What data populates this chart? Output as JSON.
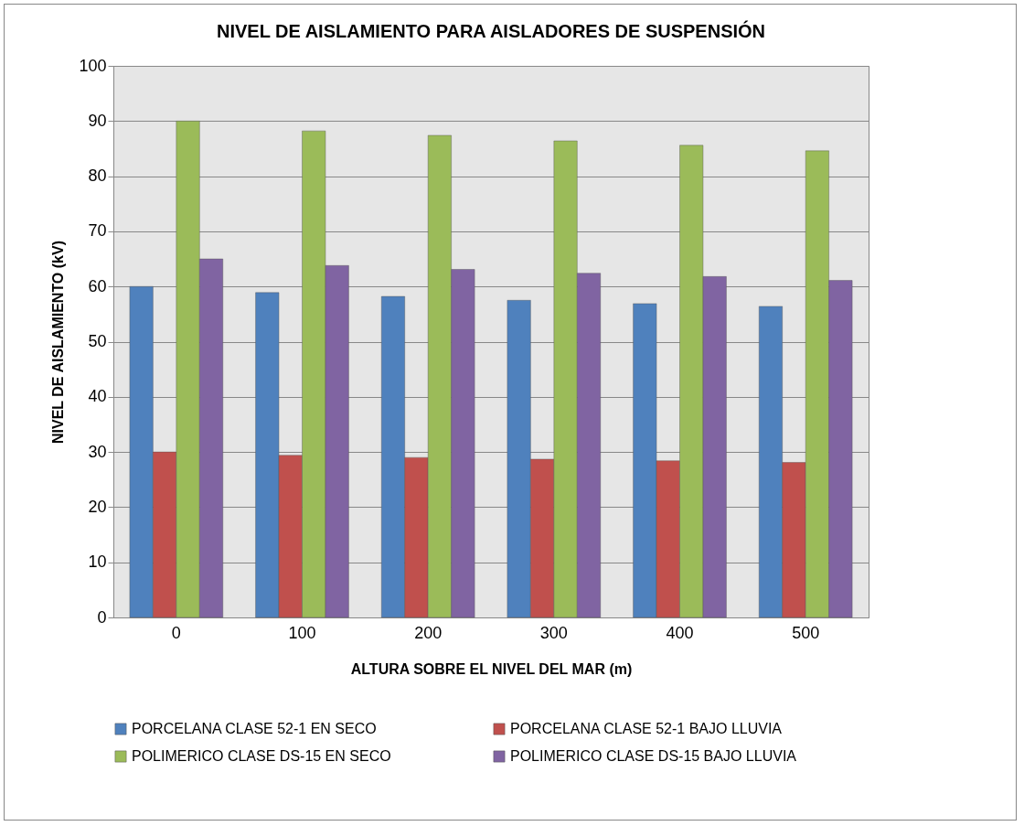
{
  "chart_data": {
    "type": "bar",
    "title": "NIVEL DE AISLAMIENTO PARA AISLADORES DE SUSPENSIÓN",
    "xlabel": "ALTURA SOBRE EL NIVEL DEL MAR (m)",
    "ylabel": "NIVEL DE AISLAMIENTO (kV)",
    "categories": [
      "0",
      "100",
      "200",
      "300",
      "400",
      "500"
    ],
    "series": [
      {
        "name": "PORCELANA CLASE 52-1 EN SECO",
        "color": "#4f81bd",
        "values": [
          60,
          58.9,
          58.2,
          57.5,
          56.9,
          56.4
        ]
      },
      {
        "name": "PORCELANA CLASE 52-1 BAJO LLUVIA",
        "color": "#c0504d",
        "values": [
          30,
          29.4,
          29,
          28.7,
          28.4,
          28.1
        ]
      },
      {
        "name": "POLIMERICO CLASE DS-15 EN SECO",
        "color": "#9bbb59",
        "values": [
          90,
          88.2,
          87.4,
          86.4,
          85.6,
          84.6
        ]
      },
      {
        "name": "POLIMERICO CLASE DS-15 BAJO LLUVIA",
        "color": "#8064a2",
        "values": [
          65,
          63.8,
          63.1,
          62.4,
          61.8,
          61.1
        ]
      }
    ],
    "ylim": [
      0,
      100
    ],
    "yticks": [
      0,
      10,
      20,
      30,
      40,
      50,
      60,
      70,
      80,
      90,
      100
    ],
    "grid": "y",
    "legend": "bottom"
  }
}
